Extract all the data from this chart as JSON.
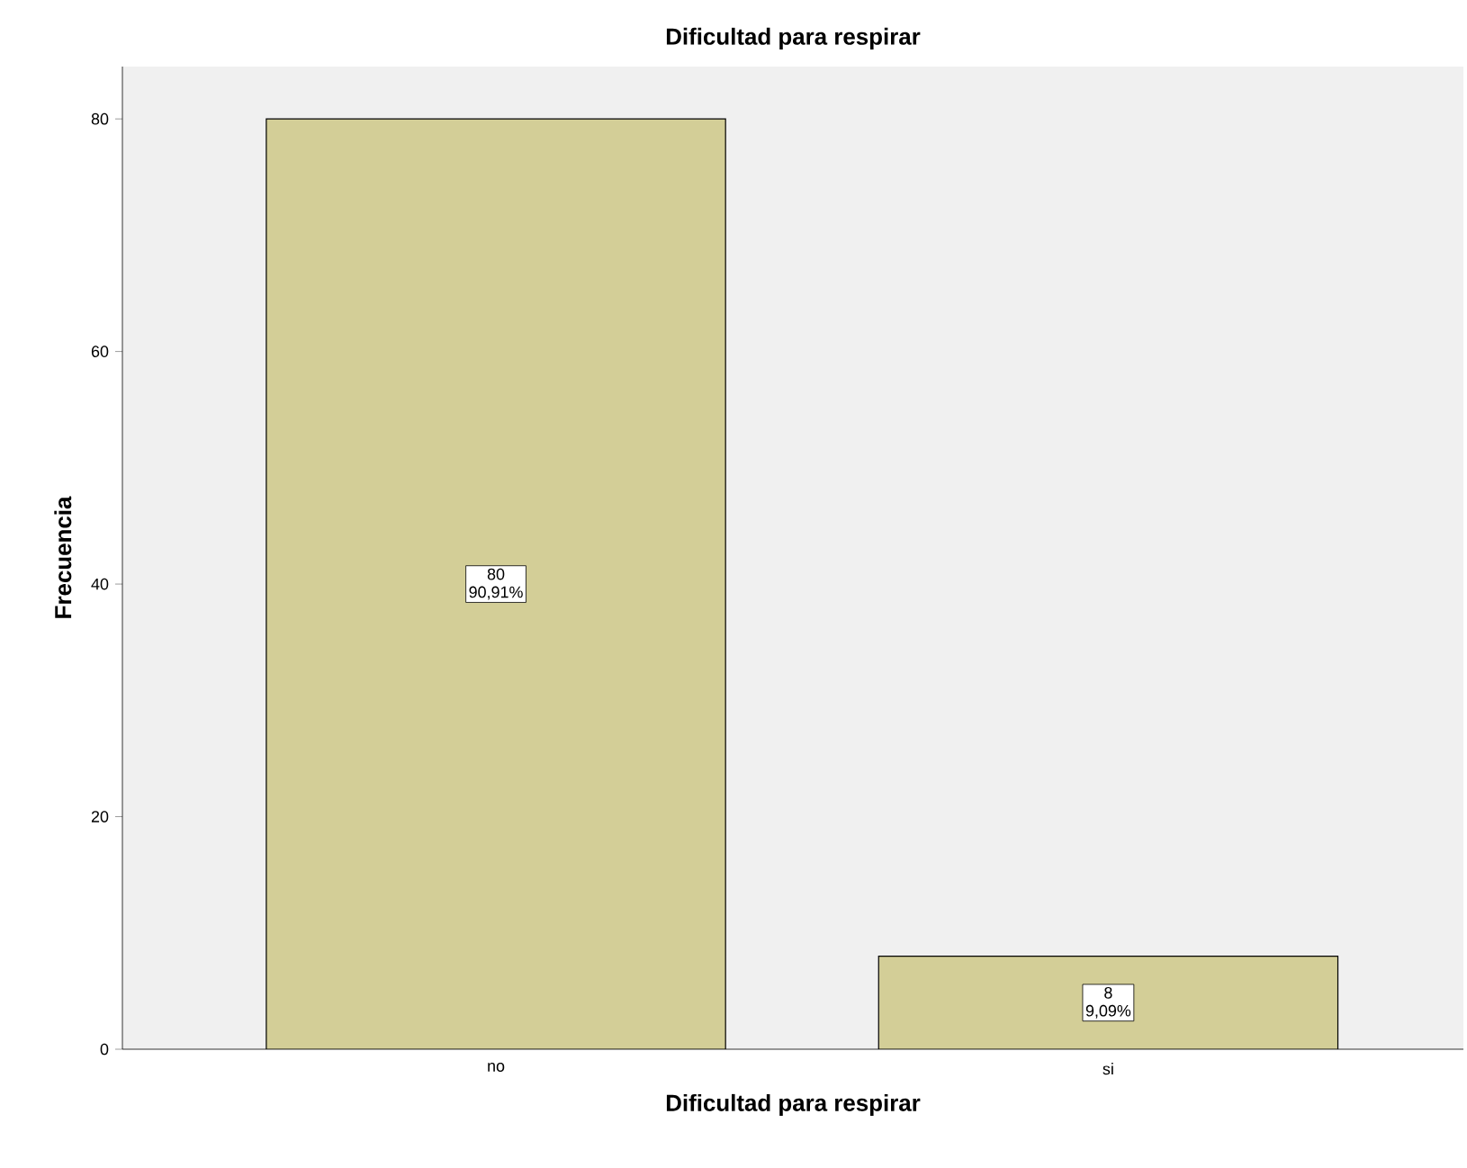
{
  "chart_data": {
    "type": "bar",
    "title": "Dificultad para respirar",
    "xlabel": "Dificultad para respirar",
    "ylabel": "Frecuencia",
    "categories": [
      "no",
      "si"
    ],
    "values": [
      80,
      8
    ],
    "color": "#d3ce97",
    "ylim": [
      0,
      84.5
    ],
    "yticks": [
      0,
      20,
      40,
      60,
      80
    ],
    "grid": false,
    "data_labels": true,
    "annotations": [
      {
        "text": "90,91%",
        "x": "no",
        "y": 40
      },
      {
        "text": "9,09%",
        "x": "si",
        "y": 4
      }
    ]
  }
}
